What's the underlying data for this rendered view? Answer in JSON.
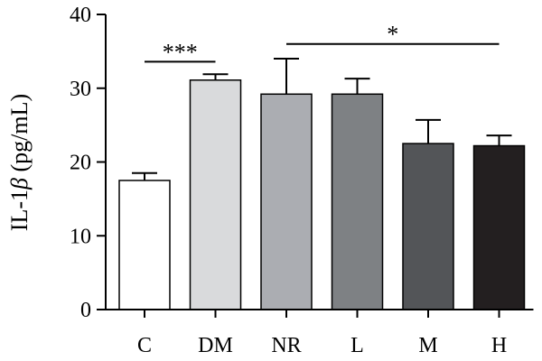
{
  "chart_data": {
    "type": "bar",
    "ylabel_prefix": "IL-1",
    "ylabel_greek": "β",
    "ylabel_suffix": " (pg/mL)",
    "ylim": [
      0,
      40
    ],
    "yticks": [
      "0",
      "10",
      "20",
      "30",
      "40"
    ],
    "grid": false,
    "categories": [
      "C",
      "DM",
      "NR",
      "L",
      "M",
      "H"
    ],
    "values": [
      17.5,
      31.1,
      29.2,
      29.2,
      22.5,
      22.2
    ],
    "errors": [
      1.0,
      0.8,
      4.8,
      2.1,
      3.2,
      1.4
    ],
    "colors": [
      "#ffffff",
      "#d9dadc",
      "#abadb2",
      "#7e8184",
      "#535558",
      "#231f20"
    ],
    "significance": [
      {
        "label": "***",
        "from": 0,
        "to": 1,
        "y": 33.6
      },
      {
        "label": "*",
        "from": 2,
        "to": 5,
        "y": 36.0
      }
    ]
  }
}
